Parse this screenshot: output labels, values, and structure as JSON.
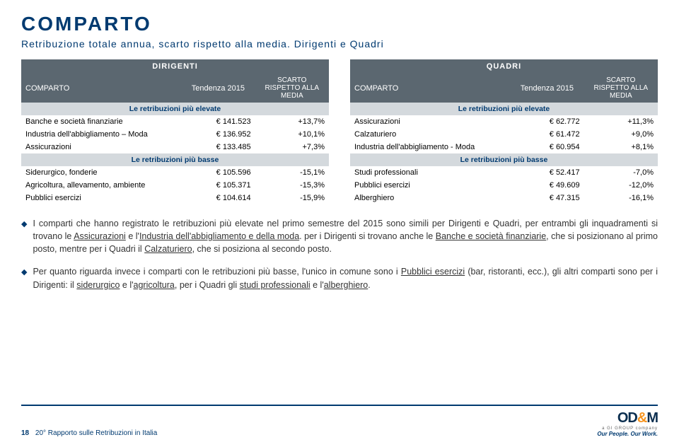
{
  "title": "COMPARTO",
  "subtitle": "Retribuzione totale annua, scarto rispetto alla media. Dirigenti e Quadri",
  "tables": {
    "dirigenti": {
      "top": "DIRIGENTI",
      "h_comp": "COMPARTO",
      "h_tend": "Tendenza 2015",
      "h_scar": "SCARTO RISPETTO ALLA MEDIA",
      "sect_hi": "Le retribuzioni più elevate",
      "hi": [
        {
          "c": "Banche e società finanziarie",
          "t": "€ 141.523",
          "s": "+13,7%"
        },
        {
          "c": "Industria dell'abbigliamento – Moda",
          "t": "€ 136.952",
          "s": "+10,1%"
        },
        {
          "c": "Assicurazioni",
          "t": "€ 133.485",
          "s": "+7,3%"
        }
      ],
      "sect_lo": "Le retribuzioni più basse",
      "lo": [
        {
          "c": "Siderurgico, fonderie",
          "t": "€ 105.596",
          "s": "-15,1%"
        },
        {
          "c": "Agricoltura, allevamento, ambiente",
          "t": "€ 105.371",
          "s": "-15,3%"
        },
        {
          "c": "Pubblici esercizi",
          "t": "€ 104.614",
          "s": "-15,9%"
        }
      ]
    },
    "quadri": {
      "top": "QUADRI",
      "h_comp": "COMPARTO",
      "h_tend": "Tendenza 2015",
      "h_scar": "SCARTO RISPETTO ALLA MEDIA",
      "sect_hi": "Le retribuzioni più elevate",
      "hi": [
        {
          "c": "Assicurazioni",
          "t": "€ 62.772",
          "s": "+11,3%"
        },
        {
          "c": "Calzaturiero",
          "t": "€ 61.472",
          "s": "+9,0%"
        },
        {
          "c": "Industria dell'abbigliamento - Moda",
          "t": "€ 60.954",
          "s": "+8,1%"
        }
      ],
      "sect_lo": "Le retribuzioni più basse",
      "lo": [
        {
          "c": "Studi professionali",
          "t": "€ 52.417",
          "s": "-7,0%"
        },
        {
          "c": "Pubblici esercizi",
          "t": "€ 49.609",
          "s": "-12,0%"
        },
        {
          "c": "Alberghiero",
          "t": "€ 47.315",
          "s": "-16,1%"
        }
      ]
    }
  },
  "notes": {
    "n1": {
      "pre": "I comparti che hanno registrato le retribuzioni più elevate nel primo semestre del 2015 sono simili per Dirigenti e Quadri, per entrambi gli inquadramenti si trovano le ",
      "u1": "Assicurazioni",
      "mid1": " e l'",
      "u2": "Industria dell'abbigliamento e della moda",
      "mid2": ". per i Dirigenti si trovano anche le ",
      "u3": "Banche e società finanziarie",
      "mid3": ", che si posizionano al primo posto, mentre per i Quadri il ",
      "u4": "Calzaturiero",
      "post": ", che si posiziona al secondo posto."
    },
    "n2": {
      "pre": "Per quanto riguarda invece i comparti con le retribuzioni più basse, l'unico in comune sono i ",
      "u1": "Pubblici esercizi",
      "mid1": " (bar, ristoranti, ecc.), gli altri comparti sono per i Dirigenti: il ",
      "u2": "siderurgico",
      "mid2": " e l'",
      "u3": "agricoltura",
      "mid3": ", per i Quadri gli ",
      "u4": "studi professionali",
      "mid4": " e l'",
      "u5": "alberghiero",
      "post": "."
    }
  },
  "footer": {
    "page": "18",
    "text": "20° Rapporto sulle Retribuzioni in Italia",
    "logo_od": "OD",
    "logo_amp": "&",
    "logo_m": "M",
    "sub": "a GI GROUP company",
    "tag": "Our People. Our Work."
  },
  "colors": {
    "brand": "#003a70",
    "header": "#5b6770",
    "section": "#d4d9dd"
  }
}
